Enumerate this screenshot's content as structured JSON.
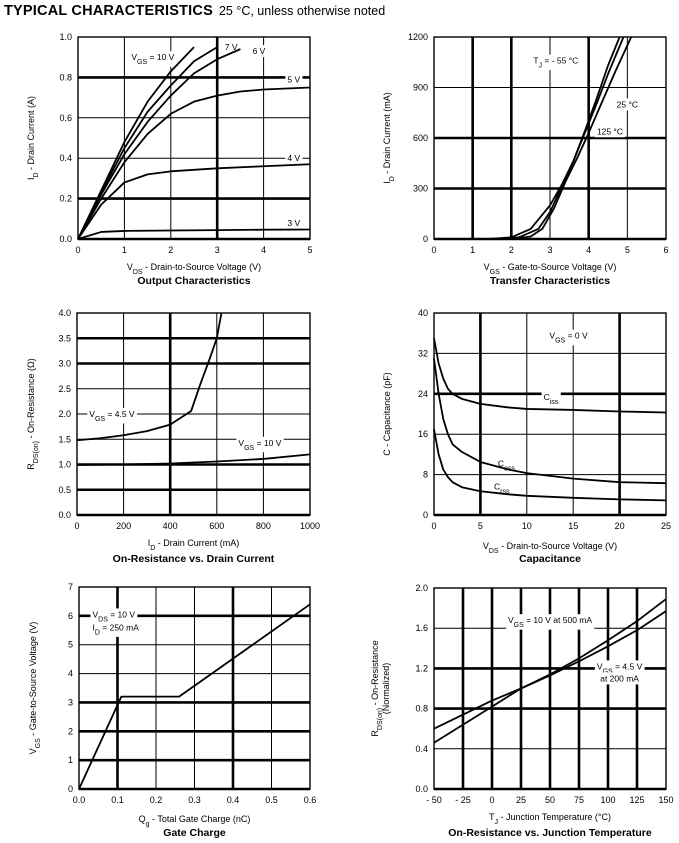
{
  "header": {
    "title": "TYPICAL CHARACTERISTICS",
    "subtitle": "25 °C, unless otherwise noted"
  },
  "chart_data": [
    {
      "id": "output",
      "type": "line",
      "title": "Output Characteristics",
      "xlabel": {
        "main": "V",
        "sub": "DS",
        "rest": " - Drain-to-Source Voltage (V)"
      },
      "ylabel": {
        "main": "I",
        "sub": "D",
        "rest": " - Drain Current (A)"
      },
      "xlim": [
        0,
        5
      ],
      "ylim": [
        0,
        1.0
      ],
      "xticks": [
        0,
        1,
        2,
        3,
        4,
        5
      ],
      "xtick_labels": [
        "0",
        "1",
        "2",
        "3",
        "4",
        "5"
      ],
      "yticks": [
        0,
        0.2,
        0.4,
        0.6,
        0.8,
        1.0
      ],
      "ytick_labels": [
        "0.0",
        "0.2",
        "0.4",
        "0.6",
        "0.8",
        "1.0"
      ],
      "grid": true,
      "bold_x": [
        3
      ],
      "bold_y": [
        0.2,
        0.8
      ],
      "series": [
        {
          "name": "VGS = 10 V",
          "x": [
            0,
            0.5,
            1.0,
            1.5,
            2.0,
            2.5
          ],
          "y": [
            0,
            0.24,
            0.48,
            0.68,
            0.83,
            0.95
          ]
        },
        {
          "name": "7 V",
          "x": [
            0,
            0.5,
            1.0,
            1.5,
            2.0,
            2.5,
            3.0
          ],
          "y": [
            0,
            0.23,
            0.45,
            0.63,
            0.76,
            0.88,
            0.95
          ]
        },
        {
          "name": "6 V",
          "x": [
            0,
            0.5,
            1.0,
            1.5,
            2.0,
            2.5,
            3.0,
            3.5
          ],
          "y": [
            0,
            0.22,
            0.42,
            0.58,
            0.71,
            0.82,
            0.89,
            0.94
          ]
        },
        {
          "name": "5 V",
          "x": [
            0,
            0.5,
            1.0,
            1.5,
            2.0,
            2.5,
            3.0,
            3.5,
            4.0,
            5.0
          ],
          "y": [
            0,
            0.2,
            0.38,
            0.52,
            0.62,
            0.68,
            0.71,
            0.73,
            0.74,
            0.75
          ]
        },
        {
          "name": "4 V",
          "x": [
            0,
            0.5,
            1.0,
            1.5,
            2.0,
            3.0,
            4.0,
            5.0
          ],
          "y": [
            0,
            0.17,
            0.28,
            0.32,
            0.335,
            0.35,
            0.36,
            0.37
          ]
        },
        {
          "name": "3 V",
          "x": [
            0,
            0.5,
            1.0,
            2.0,
            3.0,
            4.0,
            5.0
          ],
          "y": [
            0,
            0.035,
            0.04,
            0.042,
            0.044,
            0.046,
            0.047
          ]
        }
      ],
      "annotations": [
        {
          "main": "V",
          "sub": "GS",
          "rest": " = 10 V",
          "x": 1.15,
          "y": 0.9,
          "anchor": "start"
        },
        {
          "main": "7 V",
          "sub": "",
          "rest": "",
          "x": 3.3,
          "y": 0.95,
          "anchor": "middle"
        },
        {
          "main": "6 V",
          "sub": "",
          "rest": "",
          "x": 3.9,
          "y": 0.93,
          "anchor": "middle"
        },
        {
          "main": "5 V",
          "sub": "",
          "rest": "",
          "x": 4.65,
          "y": 0.79,
          "anchor": "middle"
        },
        {
          "main": "4 V",
          "sub": "",
          "rest": "",
          "x": 4.65,
          "y": 0.4,
          "anchor": "middle"
        },
        {
          "main": "3 V",
          "sub": "",
          "rest": "",
          "x": 4.65,
          "y": 0.08,
          "anchor": "middle"
        }
      ]
    },
    {
      "id": "transfer",
      "type": "line",
      "title": "Transfer Characteristics",
      "xlabel": {
        "main": "V",
        "sub": "GS",
        "rest": " - Gate-to-Source Voltage (V)"
      },
      "ylabel": {
        "main": "I",
        "sub": "D",
        "rest": " - Drain Current (mA)"
      },
      "xlim": [
        0,
        6
      ],
      "ylim": [
        0,
        1200
      ],
      "xticks": [
        0,
        1,
        2,
        3,
        4,
        5,
        6
      ],
      "xtick_labels": [
        "0",
        "1",
        "2",
        "3",
        "4",
        "5",
        "6"
      ],
      "yticks": [
        0,
        300,
        600,
        900,
        1200
      ],
      "ytick_labels": [
        "0",
        "300",
        "600",
        "900",
        "1200"
      ],
      "grid": true,
      "bold_x": [
        1,
        2,
        4
      ],
      "bold_y": [
        300,
        600
      ],
      "series": [
        {
          "name": "TJ = -55 °C",
          "x": [
            1.4,
            2.0,
            2.5,
            3.0,
            3.3,
            3.6,
            3.9,
            4.2,
            4.5,
            4.8
          ],
          "y": [
            0,
            10,
            60,
            200,
            320,
            460,
            640,
            830,
            1030,
            1200
          ]
        },
        {
          "name": "25 °C",
          "x": [
            1.7,
            2.2,
            2.7,
            3.0,
            3.3,
            3.6,
            3.9,
            4.2,
            4.5,
            4.9
          ],
          "y": [
            0,
            10,
            60,
            160,
            310,
            460,
            630,
            800,
            980,
            1200
          ]
        },
        {
          "name": "125 °C",
          "x": [
            2.0,
            2.5,
            2.8,
            3.1,
            3.4,
            3.7,
            4.0,
            4.3,
            4.7,
            5.1
          ],
          "y": [
            0,
            15,
            60,
            180,
            340,
            480,
            630,
            790,
            1000,
            1200
          ]
        }
      ],
      "annotations": [
        {
          "main": "T",
          "sub": "J",
          "rest": " = - 55 °C",
          "x": 3.15,
          "y": 1060,
          "anchor": "middle"
        },
        {
          "main": "25 °C",
          "sub": "",
          "rest": "",
          "x": 5.0,
          "y": 800,
          "anchor": "middle"
        },
        {
          "main": "125 °C",
          "sub": "",
          "rest": "",
          "x": 4.55,
          "y": 640,
          "anchor": "middle"
        }
      ]
    },
    {
      "id": "rds-vs-id",
      "type": "line",
      "title": "On-Resistance vs. Drain Current",
      "xlabel": {
        "main": "I",
        "sub": "D",
        "rest": " - Drain Current (mA)"
      },
      "ylabel": {
        "main": "R",
        "sub": "DS(on)",
        "rest": " - On-Resistance (Ω)"
      },
      "xlim": [
        0,
        1000
      ],
      "ylim": [
        0,
        4.0
      ],
      "xticks": [
        0,
        200,
        400,
        600,
        800,
        1000
      ],
      "xtick_labels": [
        "0",
        "200",
        "400",
        "600",
        "800",
        "1000"
      ],
      "yticks": [
        0,
        0.5,
        1.0,
        1.5,
        2.0,
        2.5,
        3.0,
        3.5,
        4.0
      ],
      "ytick_labels": [
        "0.0",
        "0.5",
        "1.0",
        "1.5",
        "2.0",
        "2.5",
        "3.0",
        "3.5",
        "4.0"
      ],
      "grid": true,
      "bold_x": [
        400
      ],
      "bold_y": [
        0.5,
        1.0,
        3.0,
        3.5
      ],
      "series": [
        {
          "name": "VGS = 4.5 V",
          "x": [
            0,
            100,
            200,
            300,
            400,
            490,
            530,
            570,
            600,
            620
          ],
          "y": [
            1.48,
            1.52,
            1.58,
            1.66,
            1.79,
            2.06,
            2.6,
            3.1,
            3.5,
            4.0
          ]
        },
        {
          "name": "VGS = 10 V",
          "x": [
            0,
            200,
            400,
            600,
            800,
            1000
          ],
          "y": [
            0.99,
            1.0,
            1.02,
            1.06,
            1.11,
            1.2
          ]
        }
      ],
      "annotations": [
        {
          "main": "V",
          "sub": "GS",
          "rest": " = 4.5 V",
          "x": 150,
          "y": 2.0,
          "anchor": "middle"
        },
        {
          "main": "V",
          "sub": "GS",
          "rest": " = 10 V",
          "x": 785,
          "y": 1.43,
          "anchor": "middle"
        }
      ]
    },
    {
      "id": "capacitance",
      "type": "line",
      "title": "Capacitance",
      "xlabel": {
        "main": "V",
        "sub": "DS",
        "rest": " - Drain-to-Source Voltage (V)"
      },
      "ylabel": {
        "main": "C - Capacitance (pF)",
        "sub": "",
        "rest": ""
      },
      "xlim": [
        0,
        25
      ],
      "ylim": [
        0,
        40
      ],
      "xticks": [
        0,
        5,
        10,
        15,
        20,
        25
      ],
      "xtick_labels": [
        "0",
        "5",
        "10",
        "15",
        "20",
        "25"
      ],
      "yticks": [
        0,
        8,
        16,
        24,
        32,
        40
      ],
      "ytick_labels": [
        "0",
        "8",
        "16",
        "24",
        "32",
        "40"
      ],
      "grid": true,
      "bold_x": [
        5,
        20
      ],
      "bold_y": [
        24
      ],
      "series": [
        {
          "name": "Ciss",
          "x": [
            0,
            0.5,
            1,
            1.5,
            2,
            3,
            5,
            8,
            10,
            15,
            20,
            25
          ],
          "y": [
            35,
            30,
            27,
            25,
            24,
            23,
            22,
            21.3,
            21,
            20.8,
            20.5,
            20.3
          ]
        },
        {
          "name": "Coss",
          "x": [
            0,
            0.5,
            1,
            1.5,
            2,
            3,
            5,
            8,
            10,
            15,
            20,
            25
          ],
          "y": [
            31,
            24,
            19,
            16,
            14,
            12.5,
            10.5,
            9,
            8.3,
            7.2,
            6.5,
            6.3
          ]
        },
        {
          "name": "Crss",
          "x": [
            0,
            0.5,
            1,
            1.5,
            2,
            3,
            5,
            8,
            10,
            15,
            20,
            25
          ],
          "y": [
            17,
            12,
            9,
            7.5,
            6.5,
            5.5,
            4.7,
            4.1,
            3.8,
            3.4,
            3.1,
            2.9
          ]
        }
      ],
      "annotations": [
        {
          "main": "V",
          "sub": "GS",
          "rest": " = 0 V",
          "x": 14.5,
          "y": 35.5,
          "anchor": "middle"
        },
        {
          "main": "C",
          "sub": "iss",
          "rest": "",
          "x": 12.6,
          "y": 23.4,
          "anchor": "middle"
        },
        {
          "main": "C",
          "sub": "oss",
          "rest": "",
          "x": 7.8,
          "y": 10.2,
          "anchor": "middle"
        },
        {
          "main": "C",
          "sub": "rss",
          "rest": "",
          "x": 7.3,
          "y": 5.6,
          "anchor": "middle"
        }
      ]
    },
    {
      "id": "gate-charge",
      "type": "line",
      "title": "Gate Charge",
      "xlabel": {
        "main": "Q",
        "sub": "g",
        "rest": " - Total Gate Charge (nC)"
      },
      "ylabel": {
        "main": "V",
        "sub": "GS",
        "rest": " - Gate-to-Source Voltage (V)"
      },
      "xlim": [
        0,
        0.6
      ],
      "ylim": [
        0,
        7
      ],
      "xticks": [
        0,
        0.1,
        0.2,
        0.3,
        0.4,
        0.5,
        0.6
      ],
      "xtick_labels": [
        "0.0",
        "0.1",
        "0.2",
        "0.3",
        "0.4",
        "0.5",
        "0.6"
      ],
      "yticks": [
        0,
        1,
        2,
        3,
        4,
        5,
        6,
        7
      ],
      "ytick_labels": [
        "0",
        "1",
        "2",
        "3",
        "4",
        "5",
        "6",
        "7"
      ],
      "grid": true,
      "bold_x": [
        0.1,
        0.4
      ],
      "bold_y": [
        1,
        2,
        3,
        6
      ],
      "series": [
        {
          "name": "VGS",
          "x": [
            0,
            0.11,
            0.26,
            0.6
          ],
          "y": [
            0,
            3.2,
            3.2,
            6.4
          ]
        }
      ],
      "annotations": [
        {
          "main": "V",
          "sub": "DS",
          "rest": " = 10 V",
          "x": 0.035,
          "y": 6.05,
          "anchor": "start"
        },
        {
          "main": "I",
          "sub": "D",
          "rest": " = 250 mA",
          "x": 0.035,
          "y": 5.6,
          "anchor": "start"
        }
      ]
    },
    {
      "id": "rds-vs-tj",
      "type": "line",
      "title": "On-Resistance vs. Junction Temperature",
      "xlabel": {
        "main": "T",
        "sub": "J",
        "rest": " - Junction Temperature (°C)"
      },
      "ylabel": {
        "main": "R",
        "sub": "DS(on)",
        "rest": " - On-Resistance",
        "line2": "(Normalized)"
      },
      "xlim": [
        -50,
        150
      ],
      "ylim": [
        0,
        2.0
      ],
      "xticks": [
        -50,
        -25,
        0,
        25,
        50,
        75,
        100,
        125,
        150
      ],
      "xtick_labels": [
        "- 50",
        "- 25",
        "0",
        "25",
        "50",
        "75",
        "100",
        "125",
        "150"
      ],
      "yticks": [
        0,
        0.4,
        0.8,
        1.2,
        1.6,
        2.0
      ],
      "ytick_labels": [
        "0.0",
        "0.4",
        "0.8",
        "1.2",
        "1.6",
        "2.0"
      ],
      "grid": true,
      "bold_x": [
        -25,
        0,
        25,
        50,
        75,
        100,
        125
      ],
      "bold_y": [
        0.8,
        1.2
      ],
      "series": [
        {
          "name": "VGS = 10 V at 500 mA",
          "x": [
            -50,
            0,
            25,
            50,
            75,
            100,
            125,
            150
          ],
          "y": [
            0.46,
            0.82,
            1.0,
            1.14,
            1.3,
            1.48,
            1.67,
            1.89
          ]
        },
        {
          "name": "VGS = 4.5 V at 200 mA",
          "x": [
            -50,
            0,
            25,
            50,
            75,
            100,
            125,
            150
          ],
          "y": [
            0.6,
            0.88,
            1.0,
            1.13,
            1.27,
            1.42,
            1.58,
            1.77
          ]
        }
      ],
      "annotations": [
        {
          "main": "V",
          "sub": "GS",
          "rest": " = 10 V at 500 mA",
          "x": 50,
          "y": 1.68,
          "anchor": "middle"
        },
        {
          "main": "V",
          "sub": "GS",
          "rest": " = 4.5 V",
          "x": 110,
          "y": 1.22,
          "anchor": "middle"
        },
        {
          "main": "at 200 mA",
          "sub": "",
          "rest": "",
          "x": 110,
          "y": 1.1,
          "anchor": "middle"
        }
      ]
    }
  ]
}
